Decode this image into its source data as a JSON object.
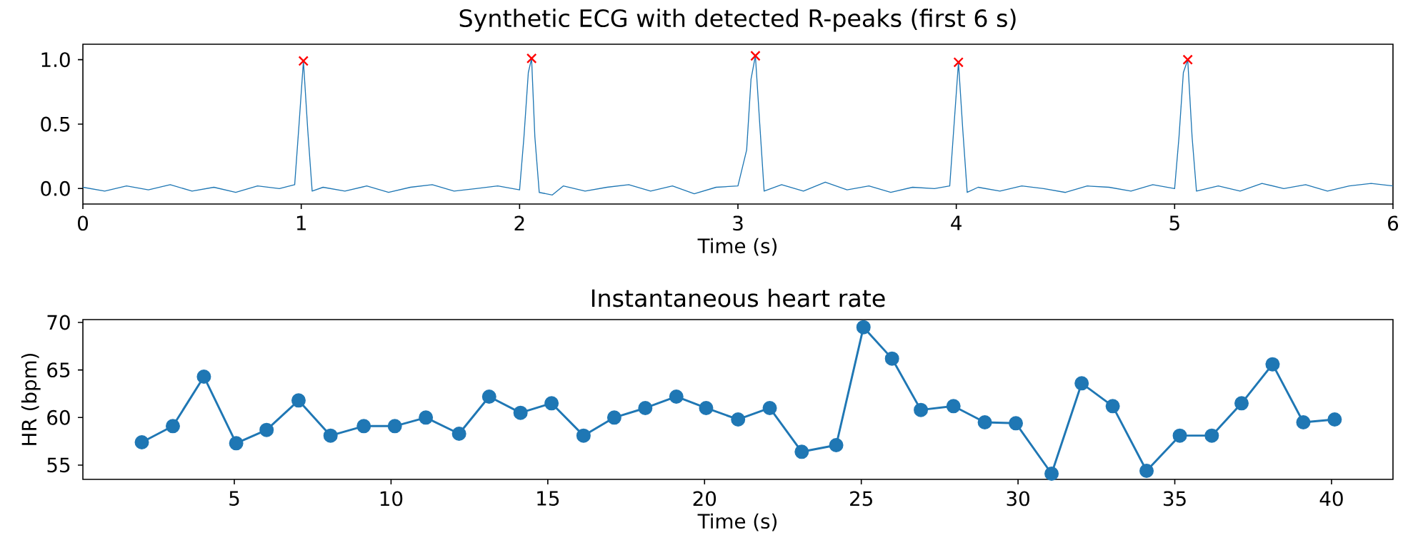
{
  "chart_data": [
    {
      "type": "line",
      "title": "Synthetic ECG with detected R-peaks (first 6 s)",
      "xlabel": "Time (s)",
      "xlim": [
        0,
        6
      ],
      "ylim": [
        -0.12,
        1.12
      ],
      "xticks": [
        0,
        1,
        2,
        3,
        4,
        5,
        6
      ],
      "yticks": [
        {
          "value": 0,
          "label": "0.0"
        },
        {
          "value": 0.5,
          "label": "0.5"
        },
        {
          "value": 1,
          "label": "1.0"
        }
      ],
      "series": [
        {
          "color": "#1f77b4",
          "marker": "none",
          "x": [
            0,
            0.1,
            0.2,
            0.3,
            0.4,
            0.5,
            0.6,
            0.7,
            0.8,
            0.9,
            0.97,
            0.99,
            1.01,
            1.03,
            1.05,
            1.1,
            1.2,
            1.3,
            1.4,
            1.5,
            1.6,
            1.7,
            1.8,
            1.9,
            2.0,
            2.02,
            2.04,
            2.055,
            2.07,
            2.09,
            2.15,
            2.2,
            2.3,
            2.4,
            2.5,
            2.6,
            2.7,
            2.8,
            2.9,
            3.0,
            3.04,
            3.06,
            3.08,
            3.1,
            3.12,
            3.2,
            3.3,
            3.4,
            3.5,
            3.6,
            3.7,
            3.8,
            3.9,
            3.97,
            3.99,
            4.01,
            4.03,
            4.05,
            4.1,
            4.2,
            4.3,
            4.4,
            4.5,
            4.6,
            4.7,
            4.8,
            4.9,
            5.0,
            5.02,
            5.04,
            5.06,
            5.08,
            5.1,
            5.2,
            5.3,
            5.4,
            5.5,
            5.6,
            5.7,
            5.8,
            5.9,
            6.0
          ],
          "values": [
            0.01,
            -0.02,
            0.02,
            -0.01,
            0.03,
            -0.02,
            0.01,
            -0.03,
            0.02,
            0.0,
            0.03,
            0.5,
            0.99,
            0.45,
            -0.02,
            0.01,
            -0.02,
            0.02,
            -0.03,
            0.01,
            0.03,
            -0.02,
            0.0,
            0.02,
            -0.01,
            0.4,
            0.9,
            1.01,
            0.4,
            -0.03,
            -0.05,
            0.02,
            -0.02,
            0.01,
            0.03,
            -0.02,
            0.02,
            -0.04,
            0.01,
            0.02,
            0.3,
            0.85,
            1.03,
            0.5,
            -0.02,
            0.03,
            -0.02,
            0.05,
            -0.01,
            0.02,
            -0.03,
            0.01,
            0.0,
            0.02,
            0.5,
            0.98,
            0.45,
            -0.03,
            0.01,
            -0.02,
            0.02,
            0.0,
            -0.03,
            0.02,
            0.01,
            -0.02,
            0.03,
            0.0,
            0.4,
            0.9,
            1.0,
            0.4,
            -0.02,
            0.02,
            -0.02,
            0.04,
            0.0,
            0.03,
            -0.02,
            0.02,
            0.04,
            0.02
          ]
        },
        {
          "type": "scatter",
          "color": "#ff0000",
          "marker": "cross",
          "x": [
            1.01,
            2.055,
            3.08,
            4.01,
            5.06
          ],
          "values": [
            0.99,
            1.01,
            1.03,
            0.98,
            1.0
          ]
        }
      ]
    },
    {
      "type": "line",
      "title": "Instantaneous heart rate",
      "xlabel": "Time (s)",
      "ylabel": "HR (bpm)",
      "xlim": [
        0.17,
        41.96
      ],
      "ylim": [
        53.5,
        70.3
      ],
      "xticks": [
        5,
        10,
        15,
        20,
        25,
        30,
        35,
        40
      ],
      "yticks": [
        55,
        60,
        65,
        70
      ],
      "series": [
        {
          "color": "#1f77b4",
          "marker": "circle",
          "x": [
            2.05,
            3.04,
            4.03,
            5.06,
            6.03,
            7.05,
            8.07,
            9.13,
            10.12,
            11.11,
            12.17,
            13.13,
            14.13,
            15.12,
            16.14,
            17.12,
            18.11,
            19.1,
            20.05,
            21.07,
            22.08,
            23.1,
            24.2,
            25.07,
            25.98,
            26.9,
            27.94,
            28.94,
            29.93,
            31.07,
            32.03,
            33.02,
            34.1,
            35.16,
            36.18,
            37.13,
            38.12,
            39.1,
            40.1
          ],
          "values": [
            57.4,
            59.1,
            64.3,
            57.3,
            58.7,
            61.8,
            58.1,
            59.1,
            59.1,
            60.0,
            58.3,
            62.2,
            60.5,
            61.5,
            58.1,
            60.0,
            61.0,
            62.2,
            61.0,
            59.8,
            61.0,
            56.4,
            57.1,
            69.5,
            66.2,
            60.8,
            61.2,
            59.5,
            59.4,
            54.1,
            63.6,
            61.2,
            54.4,
            58.1,
            58.1,
            61.5,
            65.6,
            59.5,
            59.8
          ]
        }
      ]
    }
  ]
}
